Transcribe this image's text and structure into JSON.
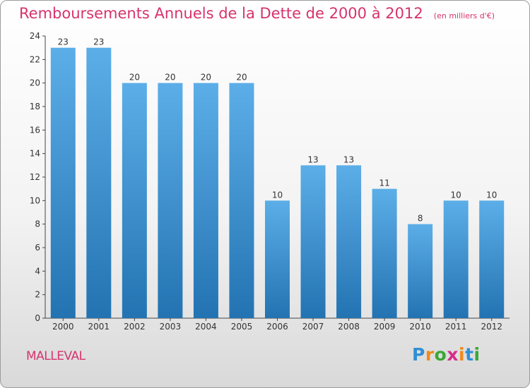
{
  "title": "Remboursements Annuels de la Dette de 2000 à 2012",
  "unit": "(en milliers d'€)",
  "commune": "MALLEVAL",
  "logo": {
    "letters": [
      "P",
      "r",
      "o",
      "x",
      "i",
      "t",
      "i"
    ],
    "colors": [
      "#2f8fd5",
      "#ef8a1a",
      "#3aa834",
      "#d62b8a",
      "#ef8a1a",
      "#2f8fd5",
      "#3aa834"
    ]
  },
  "colors": {
    "accent": "#d6336c",
    "bar_top": "#5caee8",
    "bar_bottom": "#2373b2"
  },
  "chart_data": {
    "type": "bar",
    "categories": [
      "2000",
      "2001",
      "2002",
      "2003",
      "2004",
      "2005",
      "2006",
      "2007",
      "2008",
      "2009",
      "2010",
      "2011",
      "2012"
    ],
    "values": [
      23,
      23,
      20,
      20,
      20,
      20,
      10,
      13,
      13,
      11,
      8,
      10,
      10
    ],
    "ylim": [
      0,
      24
    ],
    "yticks": [
      0,
      2,
      4,
      6,
      8,
      10,
      12,
      14,
      16,
      18,
      20,
      22,
      24
    ],
    "grid": false,
    "data_labels": true
  }
}
